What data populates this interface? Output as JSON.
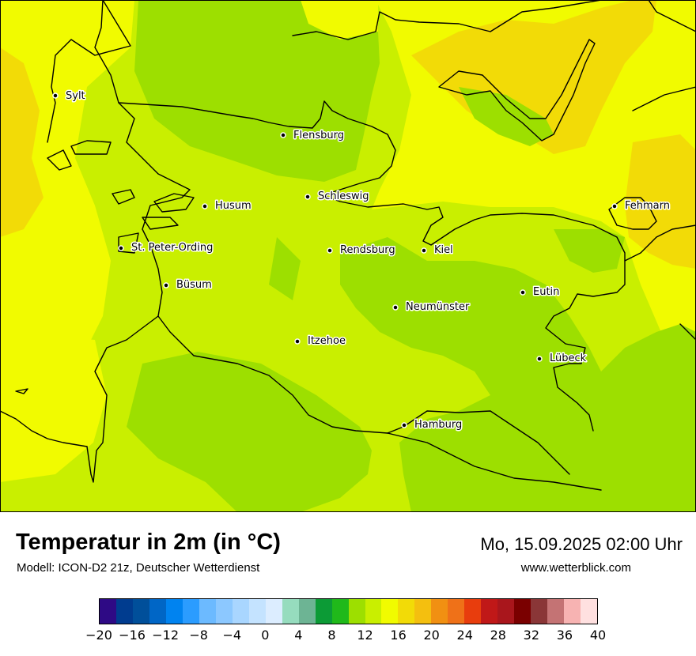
{
  "title": "Temperatur in 2m (in °C)",
  "subtitle": "Modell: ICON-D2 21z, Deutscher Wetterdienst",
  "datetime": "Mo, 15.09.2025 02:00 Uhr",
  "website": "www.wetterblick.com",
  "cities": [
    "Sylt",
    "Flensburg",
    "Schleswig",
    "Husum",
    "Fehmarn",
    "St. Peter-Ording",
    "Rendsburg",
    "Kiel",
    "Büsum",
    "Eutin",
    "Neumünster",
    "Itzehoe",
    "Lübeck",
    "Hamburg"
  ],
  "colors": {
    "temp_12": "#9ddf00",
    "temp_14": "#c9ef00",
    "temp_16": "#f1fb00",
    "temp_18": "#f2db07",
    "coastline": "#000000",
    "background": "#ffffff"
  },
  "legend": {
    "colors": [
      "#2e0a85",
      "#003c8f",
      "#004f9a",
      "#0066c6",
      "#0083f0",
      "#2b9cff",
      "#6cbaff",
      "#8cc8ff",
      "#a9d6ff",
      "#c4e3ff",
      "#dcedff",
      "#96dcbe",
      "#6db494",
      "#0c9b36",
      "#20b91a",
      "#9ddf00",
      "#c9ef00",
      "#f1fb00",
      "#f2db07",
      "#f4bf0f",
      "#f19012",
      "#ef7118",
      "#e83d0d",
      "#c01818",
      "#a9161c",
      "#7a0000",
      "#8a3637",
      "#c47374",
      "#f7b3b2",
      "#ffe0e0"
    ],
    "ticks": [
      "−20",
      "−16",
      "−12",
      "−8",
      "−4",
      "0",
      "4",
      "8",
      "12",
      "16",
      "20",
      "24",
      "28",
      "32",
      "36",
      "40"
    ]
  }
}
